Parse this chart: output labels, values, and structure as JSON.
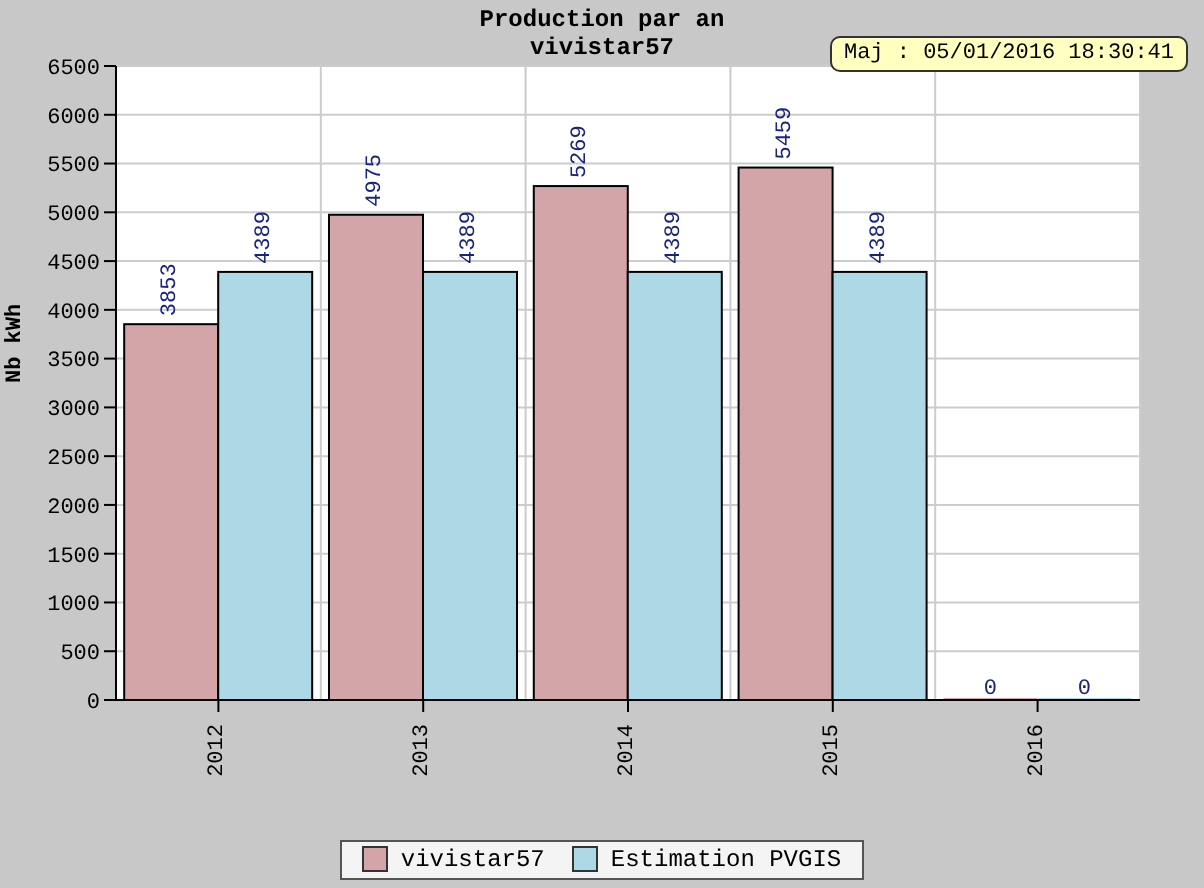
{
  "chart_data": {
    "type": "bar",
    "title": "Production par an",
    "subtitle": "vivistar57",
    "ylabel": "Nb kWh",
    "categories": [
      "2012",
      "2013",
      "2014",
      "2015",
      "2016"
    ],
    "series": [
      {
        "name": "vivistar57",
        "color": "#d4a5a8",
        "values": [
          3853,
          4975,
          5269,
          5459,
          0
        ]
      },
      {
        "name": "Estimation PVGIS",
        "color": "#add8e6",
        "values": [
          4389,
          4389,
          4389,
          4389,
          0
        ]
      }
    ],
    "ylim": [
      0,
      6500
    ],
    "yticks": [
      0,
      500,
      1000,
      1500,
      2000,
      2500,
      3000,
      3500,
      4000,
      4500,
      5000,
      5500,
      6000,
      6500
    ],
    "grid": true,
    "legend": "bottom",
    "data_labels": true,
    "annotations": [
      "Maj : 05/01/2016 18:30:41"
    ]
  }
}
